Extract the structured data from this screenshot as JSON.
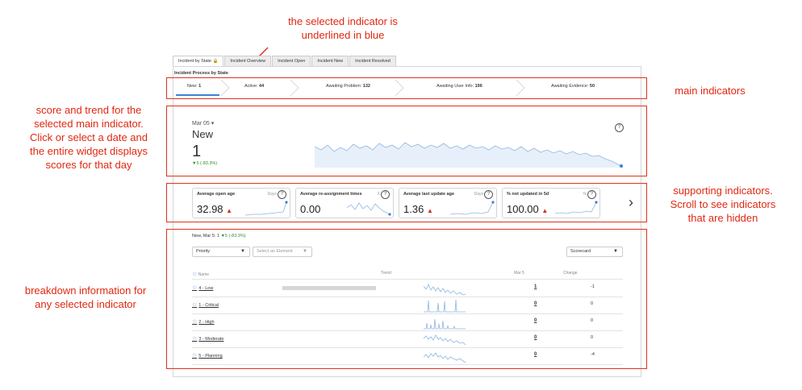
{
  "annotations": {
    "selected_indicator": [
      "the selected indicator is",
      "underlined in blue"
    ],
    "main_indicators": "main indicators",
    "score_trend": [
      "score and trend for the",
      "selected main indicator.",
      "Click or select a date and",
      "the entire widget displays",
      "scores for that day"
    ],
    "supporting": [
      "supporting indicators.",
      "Scroll to see indicators",
      "that are hidden"
    ],
    "breakdown": [
      "breakdown information for",
      "any selected indicator"
    ]
  },
  "tabs": [
    "Incident by State",
    "Incident Overview",
    "Incident Open",
    "Incident New",
    "Incident Resolved"
  ],
  "widget_title": "Incident Process by State",
  "main_indicators": [
    {
      "label": "New:",
      "value": "1"
    },
    {
      "label": "Active:",
      "value": "44"
    },
    {
      "label": "Awaiting Problem:",
      "value": "132"
    },
    {
      "label": "Awaiting User Info:",
      "value": "196"
    },
    {
      "label": "Awaiting Evidence:",
      "value": "50"
    }
  ],
  "score": {
    "date": "Mar 05",
    "name": "New",
    "value": "1",
    "trend": "▼5 (-83.3%)"
  },
  "cards": [
    {
      "title": "Average open age",
      "unit": "Days",
      "value": "32.98",
      "up": "▲"
    },
    {
      "title": "Average re-assignment times",
      "unit": "X",
      "value": "0.00",
      "up": ""
    },
    {
      "title": "Average last update age",
      "unit": "Days",
      "value": "1.36",
      "up": "▲"
    },
    {
      "title": "% not updated in 5d",
      "unit": "%",
      "value": "100.00",
      "up": "▲"
    }
  ],
  "breakdown": {
    "header_prefix": "New, Mar 5: 1",
    "header_trend": "▼5 (-83.3%)",
    "select_group": "Priority",
    "select_element": "Select an Element",
    "select_view": "Scorecard",
    "col_name": "Name",
    "col_trend": "Trend",
    "col_date": "Mar 5",
    "col_change": "Change",
    "rows": [
      {
        "name": "4 - Low",
        "value": "1",
        "change": "-1"
      },
      {
        "name": "1 - Critical",
        "value": "0",
        "change": "0"
      },
      {
        "name": "2 - High",
        "value": "0",
        "change": "0"
      },
      {
        "name": "3 - Moderate",
        "value": "0",
        "change": "0"
      },
      {
        "name": "5 - Planning",
        "value": "0",
        "change": "-4"
      }
    ]
  },
  "colors": {
    "annotation": "#e02810",
    "selected": "#3b82d6",
    "up": "#d62b1e",
    "down": "#2e8b2e"
  }
}
